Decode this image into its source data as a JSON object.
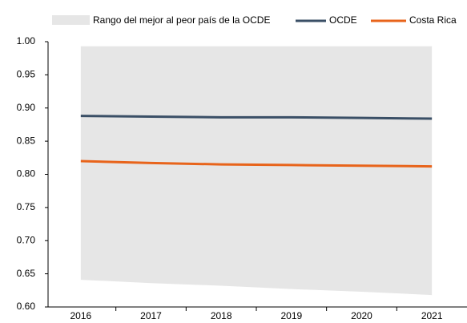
{
  "chart_data": {
    "type": "line",
    "categories": [
      "2016",
      "2017",
      "2018",
      "2019",
      "2020",
      "2021"
    ],
    "band": {
      "name": "Rango del mejor al peor país de la OCDE",
      "color": "#e6e6e6",
      "upper": [
        0.993,
        0.993,
        0.993,
        0.993,
        0.993,
        0.993
      ],
      "lower": [
        0.641,
        0.636,
        0.632,
        0.627,
        0.623,
        0.618
      ]
    },
    "series": [
      {
        "name": "OCDE",
        "color": "#3a4f66",
        "values": [
          0.888,
          0.887,
          0.886,
          0.886,
          0.885,
          0.884
        ]
      },
      {
        "name": "Costa Rica",
        "color": "#e8641b",
        "values": [
          0.82,
          0.817,
          0.815,
          0.814,
          0.813,
          0.812
        ]
      }
    ],
    "ylim": [
      0.6,
      1.0
    ],
    "yticks": [
      {
        "value": 0.6,
        "label": "0.60"
      },
      {
        "value": 0.65,
        "label": "0.65"
      },
      {
        "value": 0.7,
        "label": "0.70"
      },
      {
        "value": 0.75,
        "label": "0.75"
      },
      {
        "value": 0.8,
        "label": "0.80"
      },
      {
        "value": 0.85,
        "label": "0.85"
      },
      {
        "value": 0.9,
        "label": "0.90"
      },
      {
        "value": 0.95,
        "label": "0.95"
      },
      {
        "value": 1.0,
        "label": "1.00"
      }
    ],
    "grid": false
  }
}
